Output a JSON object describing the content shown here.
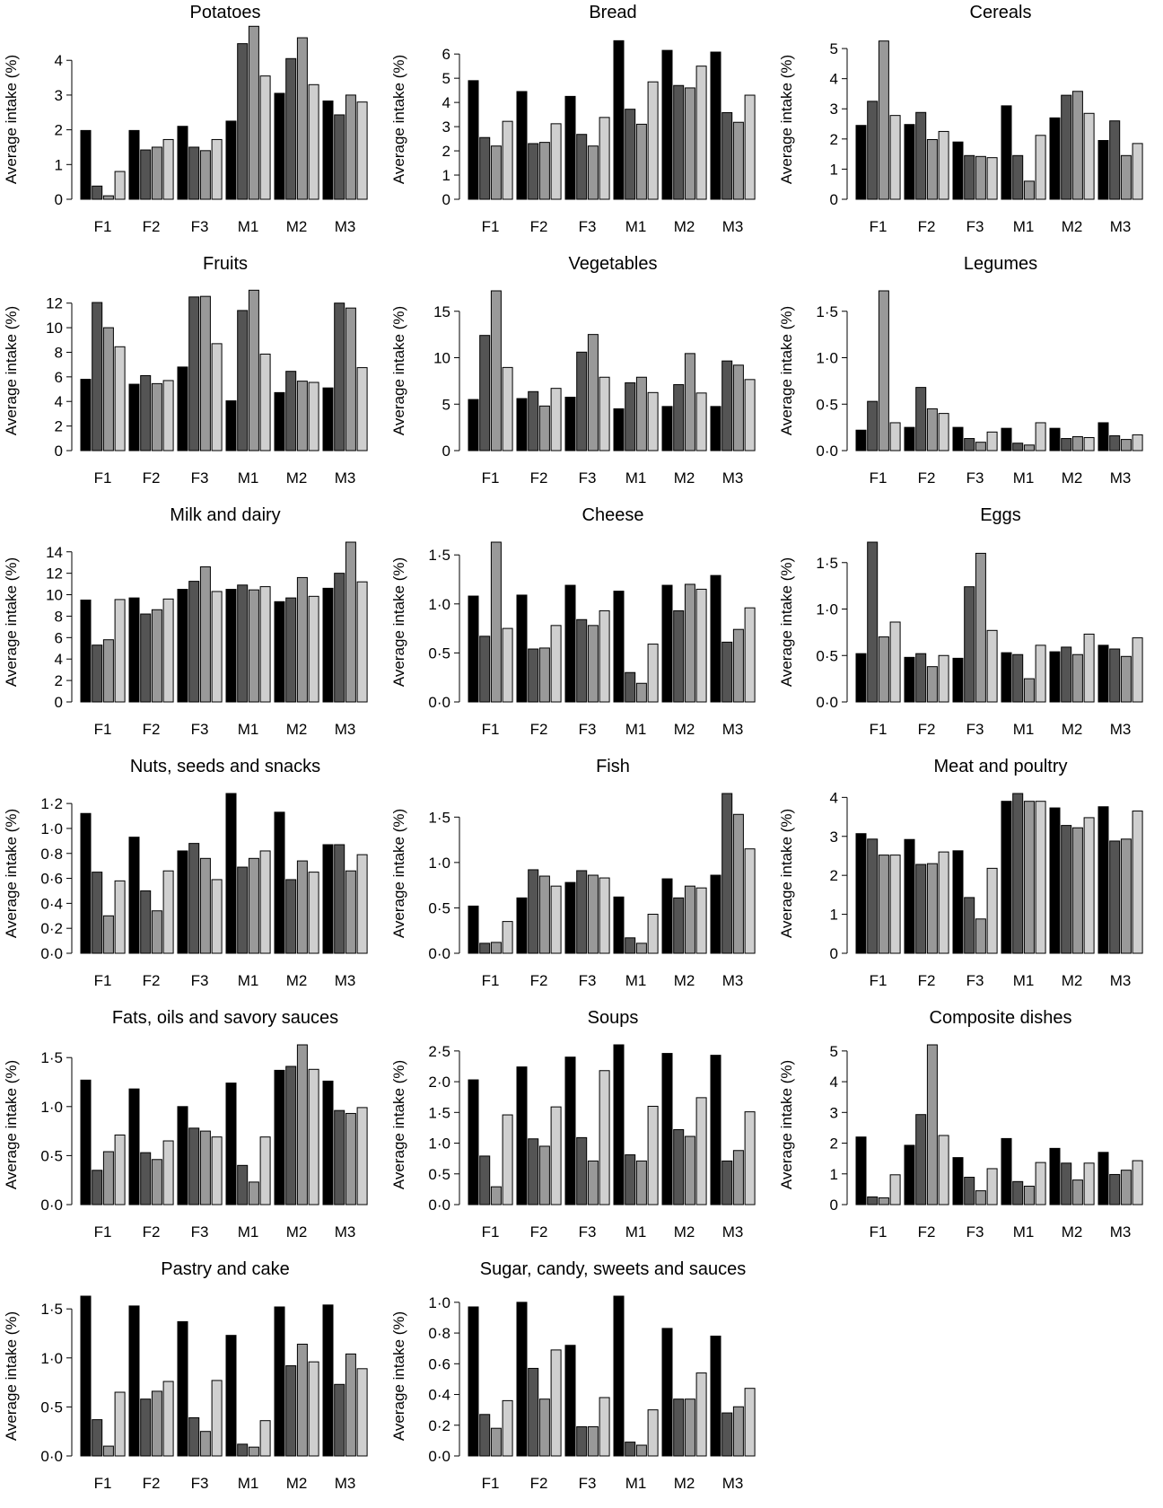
{
  "chart_data": [
    {
      "type": "bar",
      "title": "Potatoes",
      "ylabel": "Average intake (%)",
      "ylim": [
        0,
        4.6
      ],
      "yticks": [
        0,
        1,
        2,
        3,
        4
      ],
      "yticklabels": [
        "0",
        "1",
        "2",
        "3",
        "4"
      ],
      "categories": [
        "F1",
        "F2",
        "F3",
        "M1",
        "M2",
        "M3"
      ],
      "series": [
        {
          "values": [
            1.98,
            1.98,
            2.1,
            2.25,
            3.05,
            2.83
          ]
        },
        {
          "values": [
            0.38,
            1.42,
            1.5,
            4.48,
            4.05,
            2.43
          ]
        },
        {
          "values": [
            0.1,
            1.5,
            1.4,
            4.98,
            4.65,
            3.0
          ]
        },
        {
          "values": [
            0.8,
            1.72,
            1.72,
            3.55,
            3.3,
            2.8
          ]
        }
      ]
    },
    {
      "type": "bar",
      "title": "Bread",
      "ylabel": "Average intake (%)",
      "ylim": [
        0,
        6.6
      ],
      "yticks": [
        0,
        1,
        2,
        3,
        4,
        5,
        6
      ],
      "yticklabels": [
        "0",
        "1",
        "2",
        "3",
        "4",
        "5",
        "6"
      ],
      "categories": [
        "F1",
        "F2",
        "F3",
        "M1",
        "M2",
        "M3"
      ],
      "series": [
        {
          "values": [
            4.9,
            4.45,
            4.25,
            6.55,
            6.15,
            6.08
          ]
        },
        {
          "values": [
            2.55,
            2.3,
            2.68,
            3.72,
            4.7,
            3.58
          ]
        },
        {
          "values": [
            2.2,
            2.35,
            2.2,
            3.1,
            4.6,
            3.18
          ]
        },
        {
          "values": [
            3.22,
            3.12,
            3.38,
            4.85,
            5.5,
            4.3
          ]
        }
      ]
    },
    {
      "type": "bar",
      "title": "Cereals",
      "ylabel": "Average intake (%)",
      "ylim": [
        0,
        5.3
      ],
      "yticks": [
        0,
        1,
        2,
        3,
        4,
        5
      ],
      "yticklabels": [
        "0",
        "1",
        "2",
        "3",
        "4",
        "5"
      ],
      "categories": [
        "F1",
        "F2",
        "F3",
        "M1",
        "M2",
        "M3"
      ],
      "series": [
        {
          "values": [
            2.45,
            2.48,
            1.9,
            3.1,
            2.7,
            1.95
          ]
        },
        {
          "values": [
            3.25,
            2.88,
            1.45,
            1.45,
            3.45,
            2.6
          ]
        },
        {
          "values": [
            5.25,
            1.98,
            1.42,
            0.6,
            3.58,
            1.45
          ]
        },
        {
          "values": [
            2.78,
            2.25,
            1.38,
            2.12,
            2.85,
            1.85
          ]
        }
      ]
    },
    {
      "type": "bar",
      "title": "Fruits",
      "ylabel": "Average intake (%)",
      "ylim": [
        0,
        13
      ],
      "yticks": [
        0,
        2,
        4,
        6,
        8,
        10,
        12
      ],
      "yticklabels": [
        "0",
        "2",
        "4",
        "6",
        "8",
        "10",
        "12"
      ],
      "categories": [
        "F1",
        "F2",
        "F3",
        "M1",
        "M2",
        "M3"
      ],
      "series": [
        {
          "values": [
            5.8,
            5.4,
            6.8,
            4.05,
            4.72,
            5.1
          ]
        },
        {
          "values": [
            12.05,
            6.1,
            12.5,
            11.4,
            6.45,
            12.0
          ]
        },
        {
          "values": [
            10.0,
            5.45,
            12.55,
            13.05,
            5.65,
            11.6
          ]
        },
        {
          "values": [
            8.45,
            5.7,
            8.7,
            7.85,
            5.55,
            6.75
          ]
        }
      ]
    },
    {
      "type": "bar",
      "title": "Vegetables",
      "ylabel": "Average intake (%)",
      "ylim": [
        0,
        17.2
      ],
      "yticks": [
        0,
        5,
        10,
        15
      ],
      "yticklabels": [
        "0",
        "5",
        "10",
        "15"
      ],
      "categories": [
        "F1",
        "F2",
        "F3",
        "M1",
        "M2",
        "M3"
      ],
      "series": [
        {
          "values": [
            5.5,
            5.6,
            5.75,
            4.5,
            4.75,
            4.75
          ]
        },
        {
          "values": [
            12.4,
            6.35,
            10.6,
            7.3,
            7.1,
            9.65
          ]
        },
        {
          "values": [
            17.2,
            4.8,
            12.5,
            7.9,
            10.45,
            9.2
          ]
        },
        {
          "values": [
            8.95,
            6.7,
            7.9,
            6.25,
            6.2,
            7.65
          ]
        }
      ]
    },
    {
      "type": "bar",
      "title": "Legumes",
      "ylabel": "Average intake (%)",
      "ylim": [
        0,
        1.72
      ],
      "yticks": [
        0,
        0.5,
        1,
        1.5
      ],
      "yticklabels": [
        "0·0",
        "0·5",
        "1·0",
        "1·5"
      ],
      "categories": [
        "F1",
        "F2",
        "F3",
        "M1",
        "M2",
        "M3"
      ],
      "series": [
        {
          "values": [
            0.22,
            0.25,
            0.25,
            0.24,
            0.24,
            0.3
          ]
        },
        {
          "values": [
            0.53,
            0.68,
            0.13,
            0.08,
            0.13,
            0.16
          ]
        },
        {
          "values": [
            1.72,
            0.45,
            0.09,
            0.06,
            0.15,
            0.12
          ]
        },
        {
          "values": [
            0.3,
            0.4,
            0.2,
            0.3,
            0.14,
            0.17
          ]
        }
      ]
    },
    {
      "type": "bar",
      "title": "Milk and dairy",
      "ylabel": "Average intake (%)",
      "ylim": [
        0,
        14.9
      ],
      "yticks": [
        0,
        2,
        4,
        6,
        8,
        10,
        12,
        14
      ],
      "yticklabels": [
        "0",
        "2",
        "4",
        "6",
        "8",
        "10",
        "12",
        "14"
      ],
      "categories": [
        "F1",
        "F2",
        "F3",
        "M1",
        "M2",
        "M3"
      ],
      "series": [
        {
          "values": [
            9.5,
            9.7,
            10.5,
            10.5,
            9.35,
            10.6
          ]
        },
        {
          "values": [
            5.3,
            8.2,
            11.25,
            10.9,
            9.7,
            12.0
          ]
        },
        {
          "values": [
            5.8,
            8.6,
            12.6,
            10.45,
            11.6,
            14.9
          ]
        },
        {
          "values": [
            9.55,
            9.6,
            10.3,
            10.75,
            9.85,
            11.2
          ]
        }
      ]
    },
    {
      "type": "bar",
      "title": "Cheese",
      "ylabel": "Average intake (%)",
      "ylim": [
        0,
        1.63
      ],
      "yticks": [
        0,
        0.5,
        1,
        1.5
      ],
      "yticklabels": [
        "0·0",
        "0·5",
        "1·0",
        "1·5"
      ],
      "categories": [
        "F1",
        "F2",
        "F3",
        "M1",
        "M2",
        "M3"
      ],
      "series": [
        {
          "values": [
            1.08,
            1.09,
            1.19,
            1.13,
            1.19,
            1.29
          ]
        },
        {
          "values": [
            0.67,
            0.54,
            0.84,
            0.3,
            0.93,
            0.61
          ]
        },
        {
          "values": [
            1.63,
            0.55,
            0.78,
            0.19,
            1.2,
            0.74
          ]
        },
        {
          "values": [
            0.75,
            0.78,
            0.93,
            0.59,
            1.15,
            0.96
          ]
        }
      ]
    },
    {
      "type": "bar",
      "title": "Eggs",
      "ylabel": "Average intake (%)",
      "ylim": [
        0,
        1.72
      ],
      "yticks": [
        0,
        0.5,
        1,
        1.5
      ],
      "yticklabels": [
        "0·0",
        "0·5",
        "1·0",
        "1·5"
      ],
      "categories": [
        "F1",
        "F2",
        "F3",
        "M1",
        "M2",
        "M3"
      ],
      "series": [
        {
          "values": [
            0.52,
            0.48,
            0.47,
            0.53,
            0.54,
            0.61
          ]
        },
        {
          "values": [
            1.72,
            0.52,
            1.24,
            0.51,
            0.59,
            0.57
          ]
        },
        {
          "values": [
            0.7,
            0.38,
            1.6,
            0.25,
            0.51,
            0.49
          ]
        },
        {
          "values": [
            0.86,
            0.5,
            0.77,
            0.61,
            0.73,
            0.69
          ]
        }
      ]
    },
    {
      "type": "bar",
      "title": "Nuts, seeds and snacks",
      "ylabel": "Average intake (%)",
      "ylim": [
        0,
        1.28
      ],
      "yticks": [
        0,
        0.2,
        0.4,
        0.6,
        0.8,
        1,
        1.2
      ],
      "yticklabels": [
        "0·0",
        "0·2",
        "0·4",
        "0·6",
        "0·8",
        "1·0",
        "1·2"
      ],
      "categories": [
        "F1",
        "F2",
        "F3",
        "M1",
        "M2",
        "M3"
      ],
      "series": [
        {
          "values": [
            1.12,
            0.93,
            0.82,
            1.28,
            1.13,
            0.87
          ]
        },
        {
          "values": [
            0.65,
            0.5,
            0.88,
            0.69,
            0.59,
            0.87
          ]
        },
        {
          "values": [
            0.3,
            0.34,
            0.76,
            0.76,
            0.74,
            0.66
          ]
        },
        {
          "values": [
            0.58,
            0.66,
            0.59,
            0.82,
            0.65,
            0.79
          ]
        }
      ]
    },
    {
      "type": "bar",
      "title": "Fish",
      "ylabel": "Average intake (%)",
      "ylim": [
        0,
        1.76
      ],
      "yticks": [
        0,
        0.5,
        1,
        1.5
      ],
      "yticklabels": [
        "0·0",
        "0·5",
        "1·0",
        "1·5"
      ],
      "categories": [
        "F1",
        "F2",
        "F3",
        "M1",
        "M2",
        "M3"
      ],
      "series": [
        {
          "values": [
            0.52,
            0.61,
            0.78,
            0.62,
            0.82,
            0.86
          ]
        },
        {
          "values": [
            0.11,
            0.92,
            0.91,
            0.17,
            0.61,
            1.76
          ]
        },
        {
          "values": [
            0.12,
            0.85,
            0.86,
            0.11,
            0.74,
            1.53
          ]
        },
        {
          "values": [
            0.35,
            0.74,
            0.83,
            0.43,
            0.72,
            1.15
          ]
        }
      ]
    },
    {
      "type": "bar",
      "title": "Meat and poultry",
      "ylabel": "Average intake (%)",
      "ylim": [
        0,
        4.1
      ],
      "yticks": [
        0,
        1,
        2,
        3,
        4
      ],
      "yticklabels": [
        "0",
        "1",
        "2",
        "3",
        "4"
      ],
      "categories": [
        "F1",
        "F2",
        "F3",
        "M1",
        "M2",
        "M3"
      ],
      "series": [
        {
          "values": [
            3.07,
            2.92,
            2.63,
            3.9,
            3.73,
            3.76
          ]
        },
        {
          "values": [
            2.93,
            2.28,
            1.43,
            4.1,
            3.28,
            2.88
          ]
        },
        {
          "values": [
            2.52,
            2.3,
            0.88,
            3.9,
            3.22,
            2.93
          ]
        },
        {
          "values": [
            2.52,
            2.6,
            2.18,
            3.9,
            3.48,
            3.65
          ]
        }
      ]
    },
    {
      "type": "bar",
      "title": "Fats, oils and savory sauces",
      "ylabel": "Average intake (%)",
      "ylim": [
        0,
        1.63
      ],
      "yticks": [
        0,
        0.5,
        1,
        1.5
      ],
      "yticklabels": [
        "0·0",
        "0·5",
        "1·0",
        "1·5"
      ],
      "categories": [
        "F1",
        "F2",
        "F3",
        "M1",
        "M2",
        "M3"
      ],
      "series": [
        {
          "values": [
            1.27,
            1.18,
            1.0,
            1.24,
            1.37,
            1.26
          ]
        },
        {
          "values": [
            0.35,
            0.53,
            0.78,
            0.4,
            1.41,
            0.96
          ]
        },
        {
          "values": [
            0.54,
            0.46,
            0.75,
            0.23,
            1.63,
            0.93
          ]
        },
        {
          "values": [
            0.71,
            0.65,
            0.69,
            0.69,
            1.38,
            0.99
          ]
        }
      ]
    },
    {
      "type": "bar",
      "title": "Soups",
      "ylabel": "Average intake (%)",
      "ylim": [
        0,
        2.6
      ],
      "yticks": [
        0,
        0.5,
        1,
        1.5,
        2,
        2.5
      ],
      "yticklabels": [
        "0·0",
        "0·5",
        "1·0",
        "1·5",
        "2·0",
        "2·5"
      ],
      "categories": [
        "F1",
        "F2",
        "F3",
        "M1",
        "M2",
        "M3"
      ],
      "series": [
        {
          "values": [
            2.03,
            2.24,
            2.4,
            2.6,
            2.46,
            2.43
          ]
        },
        {
          "values": [
            0.79,
            1.07,
            1.09,
            0.81,
            1.22,
            0.71
          ]
        },
        {
          "values": [
            0.29,
            0.95,
            0.71,
            0.71,
            1.11,
            0.88
          ]
        },
        {
          "values": [
            1.46,
            1.59,
            2.18,
            1.6,
            1.74,
            1.51
          ]
        }
      ]
    },
    {
      "type": "bar",
      "title": "Composite dishes",
      "ylabel": "Average intake (%)",
      "ylim": [
        0,
        5.2
      ],
      "yticks": [
        0,
        1,
        2,
        3,
        4,
        5
      ],
      "yticklabels": [
        "0",
        "1",
        "2",
        "3",
        "4",
        "5"
      ],
      "categories": [
        "F1",
        "F2",
        "F3",
        "M1",
        "M2",
        "M3"
      ],
      "series": [
        {
          "values": [
            2.2,
            1.93,
            1.53,
            2.15,
            1.83,
            1.7
          ]
        },
        {
          "values": [
            0.25,
            2.93,
            0.89,
            0.75,
            1.35,
            0.98
          ]
        },
        {
          "values": [
            0.22,
            5.2,
            0.45,
            0.6,
            0.8,
            1.12
          ]
        },
        {
          "values": [
            0.97,
            2.25,
            1.17,
            1.37,
            1.35,
            1.43
          ]
        }
      ]
    },
    {
      "type": "bar",
      "title": "Pastry and cake",
      "ylabel": "Average intake (%)",
      "ylim": [
        0,
        1.63
      ],
      "yticks": [
        0,
        0.5,
        1,
        1.5
      ],
      "yticklabels": [
        "0·0",
        "0·5",
        "1·0",
        "1·5"
      ],
      "categories": [
        "F1",
        "F2",
        "F3",
        "M1",
        "M2",
        "M3"
      ],
      "series": [
        {
          "values": [
            1.63,
            1.53,
            1.37,
            1.23,
            1.52,
            1.54
          ]
        },
        {
          "values": [
            0.37,
            0.58,
            0.39,
            0.12,
            0.92,
            0.73
          ]
        },
        {
          "values": [
            0.1,
            0.66,
            0.25,
            0.09,
            1.14,
            1.04
          ]
        },
        {
          "values": [
            0.65,
            0.76,
            0.77,
            0.36,
            0.96,
            0.89
          ]
        }
      ]
    },
    {
      "type": "bar",
      "title": "Sugar, candy, sweets and sauces",
      "ylabel": "Average intake (%)",
      "ylim": [
        0,
        1.04
      ],
      "yticks": [
        0,
        0.2,
        0.4,
        0.6,
        0.8,
        1
      ],
      "yticklabels": [
        "0·0",
        "0·2",
        "0·4",
        "0·6",
        "0·8",
        "1·0"
      ],
      "categories": [
        "F1",
        "F2",
        "F3",
        "M1",
        "M2",
        "M3"
      ],
      "series": [
        {
          "values": [
            0.97,
            1.0,
            0.72,
            1.04,
            0.83,
            0.78
          ]
        },
        {
          "values": [
            0.27,
            0.57,
            0.19,
            0.09,
            0.37,
            0.28
          ]
        },
        {
          "values": [
            0.18,
            0.37,
            0.19,
            0.07,
            0.37,
            0.32
          ]
        },
        {
          "values": [
            0.36,
            0.69,
            0.38,
            0.3,
            0.54,
            0.44
          ]
        }
      ]
    }
  ],
  "colors": {
    "series": [
      "#000000",
      "#545454",
      "#999999",
      "#cfcfcf"
    ],
    "axis": "#000000",
    "bar_edge": "#000000"
  }
}
